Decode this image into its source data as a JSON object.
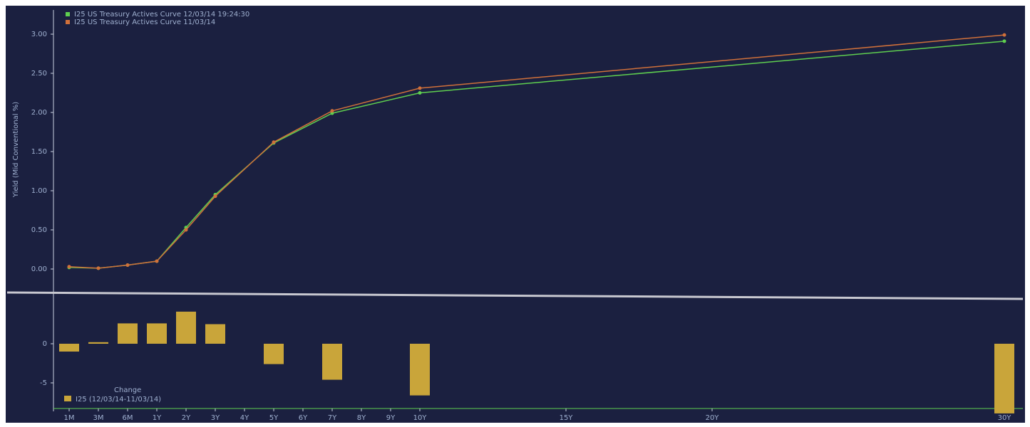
{
  "chart_data": [
    {
      "type": "line",
      "y_label": "Yield (Mid Conventional %)",
      "x": [
        "1M",
        "3M",
        "6M",
        "1Y",
        "2Y",
        "3Y",
        "5Y",
        "7Y",
        "10Y",
        "30Y"
      ],
      "xticks": [
        "1M",
        "3M",
        "6M",
        "1Y",
        "2Y",
        "3Y",
        "4Y",
        "5Y",
        "6Y",
        "7Y",
        "8Y",
        "9Y",
        "10Y",
        "15Y",
        "20Y",
        "30Y"
      ],
      "ylim": [
        0,
        3
      ],
      "yticks": [
        {
          "value": 0,
          "label": "0.00"
        },
        {
          "value": 0.5,
          "label": "0.50"
        },
        {
          "value": 1,
          "label": "1.00"
        },
        {
          "value": 1.5,
          "label": "1.50"
        },
        {
          "value": 2,
          "label": "2.00"
        },
        {
          "value": 2.5,
          "label": "2.50"
        },
        {
          "value": 3,
          "label": "3.00"
        }
      ],
      "series": [
        {
          "name": "I25 US Treasury Actives Curve 12/03/14 19:24:30",
          "color": "#5fcf4f",
          "values": [
            0.02,
            0.01,
            0.05,
            0.1,
            0.53,
            0.95,
            1.61,
            1.99,
            2.25,
            2.91
          ]
        },
        {
          "name": "I25 US Treasury Actives Curve 11/03/14",
          "color": "#d0703a",
          "values": [
            0.03,
            0.01,
            0.05,
            0.1,
            0.5,
            0.93,
            1.62,
            2.02,
            2.31,
            2.99
          ]
        }
      ]
    },
    {
      "type": "bar",
      "legend_title": "Change",
      "x": [
        "1M",
        "3M",
        "6M",
        "1Y",
        "2Y",
        "3Y",
        "5Y",
        "7Y",
        "10Y",
        "30Y"
      ],
      "ylim": [
        -9,
        5
      ],
      "yticks": [
        0,
        -5
      ],
      "series": [
        {
          "name": "I25 (12/03/14-11/03/14)",
          "color": "#c9a53a",
          "values": [
            -1,
            0.2,
            2.6,
            2.6,
            4.1,
            2.5,
            -2.6,
            -4.6,
            -6.6,
            -8.9
          ]
        }
      ]
    }
  ]
}
